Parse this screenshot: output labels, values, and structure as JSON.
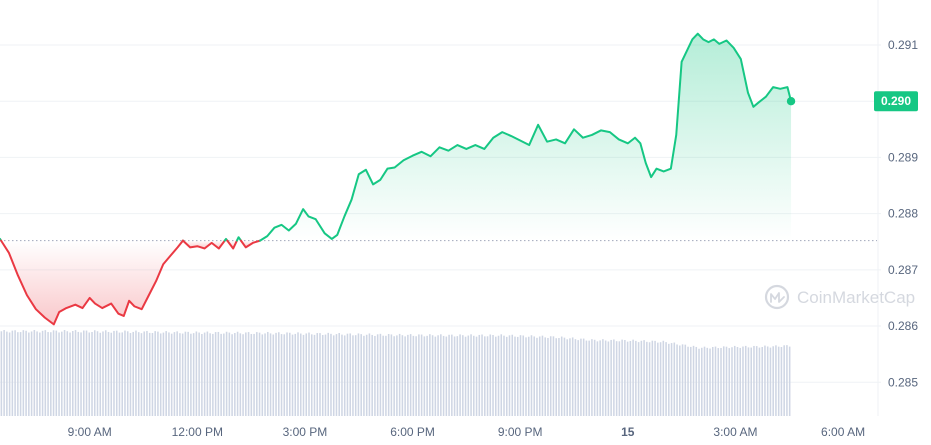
{
  "watermark": {
    "text": "CoinMarketCap",
    "icon": "coinmarketcap-logo-icon"
  },
  "colors": {
    "up": "#16c784",
    "down": "#ea3943",
    "grid": "#eff2f5",
    "baseline": "#a1a7bb",
    "volume": "#cfd6e4",
    "text": "#58667e",
    "current_label_bg": "#16c784"
  },
  "chart_data": {
    "type": "area",
    "y_axis_position": "right",
    "yticks": [
      0.285,
      0.286,
      0.287,
      0.288,
      0.289,
      0.29,
      0.291
    ],
    "ylim": [
      0.2844,
      0.2918
    ],
    "xlim": [
      0,
      24
    ],
    "xticks": [
      {
        "x": 2.5,
        "label": "9:00 AM"
      },
      {
        "x": 5.5,
        "label": "12:00 PM"
      },
      {
        "x": 8.5,
        "label": "3:00 PM"
      },
      {
        "x": 11.5,
        "label": "6:00 PM"
      },
      {
        "x": 14.5,
        "label": "9:00 PM"
      },
      {
        "x": 17.5,
        "label": "15",
        "bold": true
      },
      {
        "x": 20.5,
        "label": "3:00 AM"
      },
      {
        "x": 23.5,
        "label": "6:00 AM"
      }
    ],
    "baseline": 0.28752,
    "current": {
      "value": 0.29,
      "label": "0.290"
    },
    "grid": true,
    "legend": "none",
    "series": [
      {
        "values": [
          [
            0.0,
            0.28755
          ],
          [
            0.25,
            0.2873
          ],
          [
            0.5,
            0.2869
          ],
          [
            0.75,
            0.28655
          ],
          [
            1.0,
            0.2863
          ],
          [
            1.25,
            0.28615
          ],
          [
            1.5,
            0.28603
          ],
          [
            1.65,
            0.28625
          ],
          [
            1.85,
            0.28632
          ],
          [
            2.1,
            0.28638
          ],
          [
            2.3,
            0.28632
          ],
          [
            2.5,
            0.2865
          ],
          [
            2.65,
            0.2864
          ],
          [
            2.85,
            0.28632
          ],
          [
            3.1,
            0.2864
          ],
          [
            3.3,
            0.28622
          ],
          [
            3.45,
            0.28618
          ],
          [
            3.6,
            0.28645
          ],
          [
            3.75,
            0.28635
          ],
          [
            3.95,
            0.2863
          ],
          [
            4.15,
            0.28655
          ],
          [
            4.35,
            0.2868
          ],
          [
            4.55,
            0.2871
          ],
          [
            4.75,
            0.28725
          ],
          [
            4.95,
            0.2874
          ],
          [
            5.1,
            0.28752
          ],
          [
            5.3,
            0.2874
          ],
          [
            5.5,
            0.28742
          ],
          [
            5.7,
            0.28738
          ],
          [
            5.9,
            0.28748
          ],
          [
            6.1,
            0.28738
          ],
          [
            6.3,
            0.28755
          ],
          [
            6.5,
            0.28738
          ],
          [
            6.65,
            0.28758
          ],
          [
            6.85,
            0.2874
          ],
          [
            7.05,
            0.28748
          ],
          [
            7.25,
            0.28752
          ],
          [
            7.45,
            0.2876
          ],
          [
            7.65,
            0.28775
          ],
          [
            7.85,
            0.2878
          ],
          [
            8.05,
            0.2877
          ],
          [
            8.25,
            0.28782
          ],
          [
            8.45,
            0.28808
          ],
          [
            8.6,
            0.28795
          ],
          [
            8.8,
            0.2879
          ],
          [
            9.05,
            0.28765
          ],
          [
            9.25,
            0.28755
          ],
          [
            9.4,
            0.28762
          ],
          [
            9.6,
            0.28795
          ],
          [
            9.8,
            0.28825
          ],
          [
            10.0,
            0.2887
          ],
          [
            10.2,
            0.28878
          ],
          [
            10.4,
            0.28852
          ],
          [
            10.6,
            0.2886
          ],
          [
            10.8,
            0.2888
          ],
          [
            11.0,
            0.28882
          ],
          [
            11.25,
            0.28895
          ],
          [
            11.5,
            0.28903
          ],
          [
            11.75,
            0.2891
          ],
          [
            12.0,
            0.28902
          ],
          [
            12.25,
            0.28918
          ],
          [
            12.5,
            0.28912
          ],
          [
            12.75,
            0.28922
          ],
          [
            13.0,
            0.28915
          ],
          [
            13.25,
            0.28922
          ],
          [
            13.5,
            0.28915
          ],
          [
            13.75,
            0.28935
          ],
          [
            14.0,
            0.28945
          ],
          [
            14.25,
            0.28938
          ],
          [
            14.5,
            0.2893
          ],
          [
            14.75,
            0.28922
          ],
          [
            15.0,
            0.28958
          ],
          [
            15.25,
            0.28928
          ],
          [
            15.5,
            0.28932
          ],
          [
            15.75,
            0.28925
          ],
          [
            16.0,
            0.2895
          ],
          [
            16.25,
            0.28935
          ],
          [
            16.5,
            0.2894
          ],
          [
            16.75,
            0.28948
          ],
          [
            17.0,
            0.28945
          ],
          [
            17.25,
            0.28932
          ],
          [
            17.5,
            0.28925
          ],
          [
            17.7,
            0.28935
          ],
          [
            17.85,
            0.28925
          ],
          [
            18.0,
            0.2889
          ],
          [
            18.15,
            0.28865
          ],
          [
            18.3,
            0.2888
          ],
          [
            18.5,
            0.28875
          ],
          [
            18.7,
            0.2888
          ],
          [
            18.85,
            0.2894
          ],
          [
            19.0,
            0.2907
          ],
          [
            19.15,
            0.2909
          ],
          [
            19.3,
            0.2911
          ],
          [
            19.45,
            0.2912
          ],
          [
            19.6,
            0.2911
          ],
          [
            19.75,
            0.29105
          ],
          [
            19.9,
            0.2911
          ],
          [
            20.05,
            0.29102
          ],
          [
            20.25,
            0.29108
          ],
          [
            20.45,
            0.29095
          ],
          [
            20.65,
            0.29075
          ],
          [
            20.85,
            0.29015
          ],
          [
            21.0,
            0.2899
          ],
          [
            21.15,
            0.28998
          ],
          [
            21.35,
            0.29008
          ],
          [
            21.55,
            0.29025
          ],
          [
            21.75,
            0.29022
          ],
          [
            21.95,
            0.29025
          ],
          [
            22.05,
            0.29
          ]
        ]
      }
    ],
    "volume": {
      "ylim_top": 0.28593,
      "values": [
        [
          0.0,
          1.0
        ],
        [
          2.0,
          1.0
        ],
        [
          3.5,
          0.995
        ],
        [
          5.0,
          0.985
        ],
        [
          6.5,
          0.98
        ],
        [
          8.0,
          0.975
        ],
        [
          9.5,
          0.965
        ],
        [
          11.0,
          0.955
        ],
        [
          12.5,
          0.95
        ],
        [
          14.0,
          0.95
        ],
        [
          15.5,
          0.93
        ],
        [
          16.5,
          0.895
        ],
        [
          17.5,
          0.89
        ],
        [
          18.5,
          0.875
        ],
        [
          19.5,
          0.805
        ],
        [
          20.5,
          0.815
        ],
        [
          21.5,
          0.82
        ],
        [
          22.05,
          0.83
        ]
      ]
    }
  }
}
